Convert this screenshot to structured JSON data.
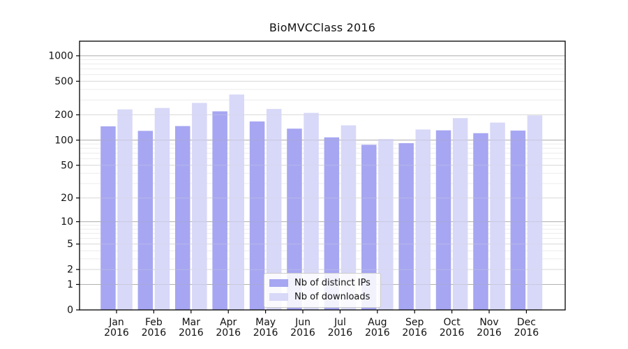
{
  "chart_data": {
    "type": "bar",
    "title": "BioMVCClass 2016",
    "categories": [
      "Jan",
      "Feb",
      "Mar",
      "Apr",
      "May",
      "Jun",
      "Jul",
      "Aug",
      "Sep",
      "Oct",
      "Nov",
      "Dec"
    ],
    "x_tick_second_line": "2016",
    "series": [
      {
        "name": "Nb of distinct IPs",
        "color": "#A6A6F2",
        "values": [
          146,
          129,
          147,
          220,
          167,
          137,
          108,
          88,
          92,
          131,
          121,
          130
        ]
      },
      {
        "name": "Nb of downloads",
        "color": "#D8D8F8",
        "values": [
          232,
          241,
          277,
          348,
          235,
          211,
          150,
          103,
          134,
          183,
          162,
          197
        ]
      }
    ],
    "yscale": "log1p",
    "ylim": [
      0,
      1500
    ],
    "y_ticks": [
      0,
      1,
      2,
      5,
      10,
      20,
      50,
      100,
      200,
      500,
      1000
    ],
    "y_major_gridlines": [
      1,
      10,
      100,
      1000
    ],
    "grid": true,
    "legend_position": "lower-center-inside"
  },
  "colors": {
    "background": "#ffffff",
    "grid_major": "#b0b0b0",
    "grid_medium": "#d9d9d9",
    "grid_minor": "#ececec",
    "axis": "#000000",
    "text": "#111111",
    "legend_border": "#cccccc"
  }
}
